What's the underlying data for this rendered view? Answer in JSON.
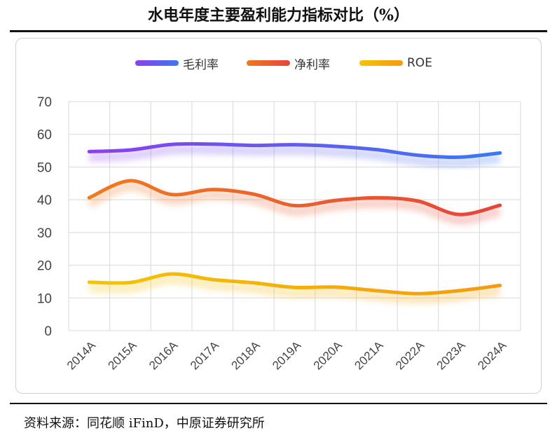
{
  "title": "水电年度主要盈利能力指标对比（%）",
  "source": "资料来源：同花顺 iFinD，中原证券研究所",
  "chart_data": {
    "type": "line",
    "categories": [
      "2014A",
      "2015A",
      "2016A",
      "2017A",
      "2018A",
      "2019A",
      "2020A",
      "2021A",
      "2022A",
      "2023A",
      "2024A"
    ],
    "ylim": [
      0,
      70
    ],
    "yticks": [
      "0",
      "10",
      "20",
      "30",
      "40",
      "50",
      "60",
      "70"
    ],
    "grid": true,
    "legend_position": "top",
    "series": [
      {
        "name": "毛利率",
        "values": [
          54.7,
          55.2,
          56.9,
          57.0,
          56.6,
          56.8,
          56.3,
          55.3,
          53.6,
          53.0,
          54.3
        ],
        "color_start": "#8b3ff0",
        "color_end": "#3a78f0"
      },
      {
        "name": "净利率",
        "values": [
          40.6,
          45.8,
          41.6,
          43.1,
          41.7,
          38.2,
          39.8,
          40.6,
          39.6,
          35.5,
          38.3
        ],
        "color_start": "#f07a20",
        "color_end": "#e8433a"
      },
      {
        "name": "ROE",
        "values": [
          14.8,
          14.7,
          17.3,
          15.6,
          14.6,
          13.2,
          13.3,
          12.2,
          11.3,
          12.2,
          13.8
        ],
        "color_start": "#f5c400",
        "color_end": "#f59a10"
      }
    ]
  }
}
